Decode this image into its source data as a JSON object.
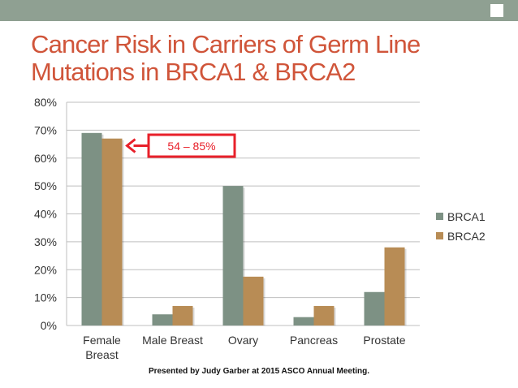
{
  "slide": {
    "title_lines": [
      "Cancer Risk in Carriers of Germ Line",
      "Mutations in BRCA1 & BRCA2"
    ],
    "footer": "Presented by Judy Garber at 2015 ASCO Annual Meeting."
  },
  "colors": {
    "title": "#d0553a",
    "top_bar": "#8fa092",
    "brca1": "#7d9184",
    "brca2": "#b88c55",
    "callout": "#e8202a"
  },
  "chart_data": {
    "type": "bar",
    "categories": [
      "Female Breast",
      "Male Breast",
      "Ovary",
      "Pancreas",
      "Prostate"
    ],
    "category_labels": [
      [
        "Female",
        "Breast"
      ],
      [
        "Male Breast"
      ],
      [
        "Ovary"
      ],
      [
        "Pancreas"
      ],
      [
        "Prostate"
      ]
    ],
    "series": [
      {
        "name": "BRCA1",
        "values": [
          69,
          4,
          50,
          3,
          12
        ]
      },
      {
        "name": "BRCA2",
        "values": [
          67,
          7,
          17.5,
          7,
          28
        ]
      }
    ],
    "ylim": [
      0,
      80
    ],
    "y_ticks": [
      0,
      10,
      20,
      30,
      40,
      50,
      60,
      70,
      80
    ],
    "y_tick_labels": [
      "0%",
      "10%",
      "20%",
      "30%",
      "40%",
      "50%",
      "60%",
      "70%",
      "80%"
    ],
    "grid": true,
    "legend_position": "right",
    "annotation": {
      "text": "54 – 85%",
      "category": "Female Breast",
      "series": "BRCA2"
    }
  }
}
